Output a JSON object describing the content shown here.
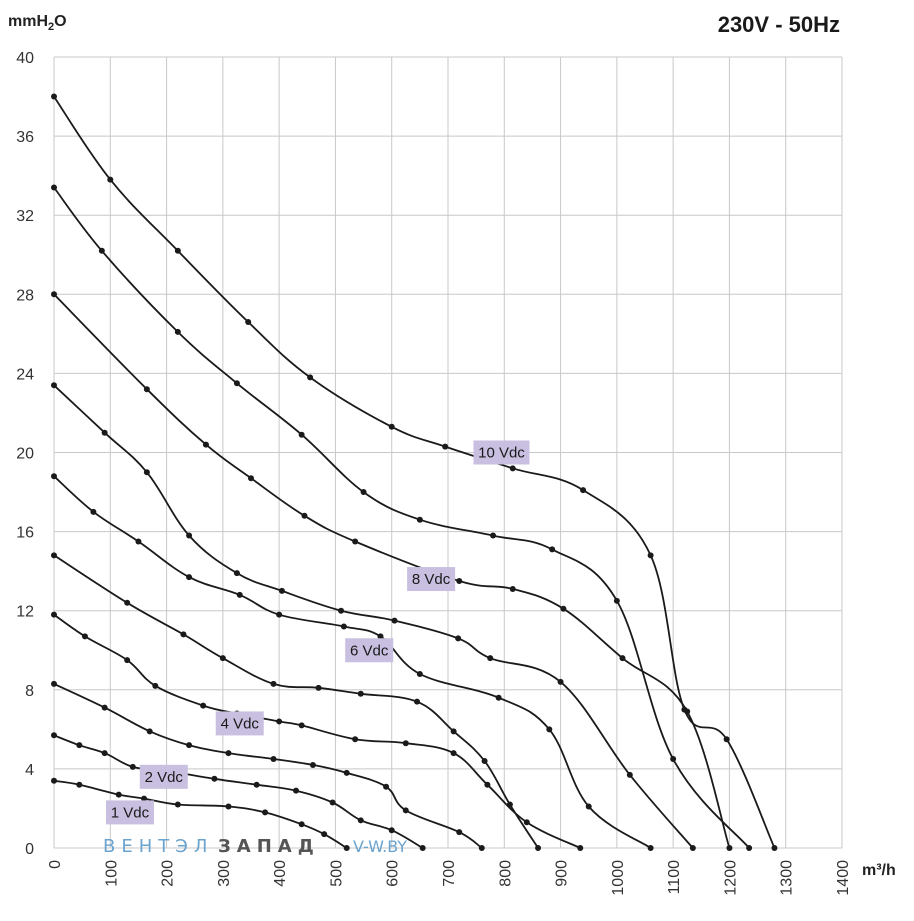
{
  "chart_data": {
    "type": "line",
    "title": "230V - 50Hz",
    "ylabel_main": "mmH",
    "ylabel_sub": "2",
    "ylabel_tail": "O",
    "xlabel": "m³/h",
    "xlim": [
      0,
      1400
    ],
    "ylim": [
      0,
      40
    ],
    "xticks": [
      0,
      100,
      200,
      300,
      400,
      500,
      600,
      700,
      800,
      900,
      1000,
      1100,
      1200,
      1300,
      1400
    ],
    "yticks": [
      0,
      4,
      8,
      12,
      16,
      20,
      24,
      28,
      32,
      36,
      40
    ],
    "grid": true,
    "colors": {
      "curve": "#1a1a1a",
      "grid": "#c8c8c8",
      "label_bg": "#c9bfe0"
    },
    "series": [
      {
        "name": "10 Vdc",
        "points": [
          [
            0,
            38
          ],
          [
            100,
            33.8
          ],
          [
            220,
            30.2
          ],
          [
            345,
            26.6
          ],
          [
            455,
            23.8
          ],
          [
            600,
            21.3
          ],
          [
            695,
            20.3
          ],
          [
            815,
            19.2
          ],
          [
            940,
            18.1
          ],
          [
            1060,
            14.8
          ],
          [
            1120,
            7
          ],
          [
            1195,
            5.5
          ],
          [
            1280,
            0
          ]
        ],
        "label_at": [
          795,
          20
        ]
      },
      {
        "name": "8 Vdc",
        "points": [
          [
            0,
            33.4
          ],
          [
            85,
            30.2
          ],
          [
            220,
            26.1
          ],
          [
            325,
            23.5
          ],
          [
            440,
            20.9
          ],
          [
            550,
            18
          ],
          [
            650,
            16.6
          ],
          [
            780,
            15.8
          ],
          [
            885,
            15.1
          ],
          [
            1000,
            12.5
          ],
          [
            1100,
            4.5
          ],
          [
            1235,
            0
          ]
        ],
        "label_at": [
          670,
          13.6
        ]
      },
      {
        "name": "6 Vdc",
        "points": [
          [
            0,
            28
          ],
          [
            165,
            23.2
          ],
          [
            270,
            20.4
          ],
          [
            350,
            18.7
          ],
          [
            445,
            16.8
          ],
          [
            535,
            15.5
          ],
          [
            720,
            13.5
          ],
          [
            815,
            13.1
          ],
          [
            905,
            12.1
          ],
          [
            1010,
            9.6
          ],
          [
            1125,
            6.9
          ],
          [
            1200,
            0
          ]
        ],
        "label_at": [
          560,
          10
        ]
      },
      {
        "name": "4 Vdc",
        "points": [
          [
            0,
            23.4
          ],
          [
            90,
            21
          ],
          [
            165,
            19
          ],
          [
            240,
            15.8
          ],
          [
            325,
            13.9
          ],
          [
            405,
            13
          ],
          [
            510,
            12
          ],
          [
            605,
            11.5
          ],
          [
            718,
            10.6
          ],
          [
            775,
            9.6
          ],
          [
            900,
            8.4
          ],
          [
            1023,
            3.7
          ],
          [
            1135,
            0
          ]
        ],
        "label_at": [
          330,
          6.3
        ]
      },
      {
        "name": "2 Vdc",
        "points": [
          [
            0,
            18.8
          ],
          [
            70,
            17
          ],
          [
            150,
            15.5
          ],
          [
            240,
            13.7
          ],
          [
            330,
            12.8
          ],
          [
            400,
            11.8
          ],
          [
            515,
            11.2
          ],
          [
            580,
            10.7
          ],
          [
            650,
            8.8
          ],
          [
            790,
            7.6
          ],
          [
            880,
            6
          ],
          [
            950,
            2.1
          ],
          [
            1060,
            0
          ]
        ],
        "label_at": [
          195,
          3.6
        ]
      },
      {
        "name": "1 Vdc",
        "points": [
          [
            0,
            14.8
          ],
          [
            130,
            12.4
          ],
          [
            230,
            10.8
          ],
          [
            300,
            9.6
          ],
          [
            390,
            8.3
          ],
          [
            470,
            8.1
          ],
          [
            545,
            7.8
          ],
          [
            645,
            7.4
          ],
          [
            710,
            5.9
          ],
          [
            765,
            4.4
          ],
          [
            810,
            2.2
          ],
          [
            860,
            0
          ]
        ],
        "label_at": [
          135,
          1.8
        ]
      },
      {
        "points": [
          [
            0,
            11.8
          ],
          [
            55,
            10.7
          ],
          [
            130,
            9.5
          ],
          [
            180,
            8.2
          ],
          [
            265,
            7.2
          ],
          [
            325,
            6.8
          ],
          [
            400,
            6.4
          ],
          [
            440,
            6.2
          ],
          [
            535,
            5.5
          ],
          [
            625,
            5.3
          ],
          [
            710,
            4.8
          ],
          [
            770,
            3.2
          ],
          [
            840,
            1.3
          ],
          [
            935,
            0
          ]
        ]
      },
      {
        "points": [
          [
            0,
            8.3
          ],
          [
            90,
            7.1
          ],
          [
            170,
            5.9
          ],
          [
            240,
            5.2
          ],
          [
            310,
            4.8
          ],
          [
            390,
            4.5
          ],
          [
            460,
            4.2
          ],
          [
            520,
            3.8
          ],
          [
            590,
            3.1
          ],
          [
            625,
            1.9
          ],
          [
            720,
            0.8
          ],
          [
            760,
            0
          ]
        ]
      },
      {
        "points": [
          [
            0,
            5.7
          ],
          [
            45,
            5.2
          ],
          [
            90,
            4.8
          ],
          [
            140,
            4.1
          ],
          [
            200,
            3.9
          ],
          [
            285,
            3.5
          ],
          [
            360,
            3.2
          ],
          [
            430,
            2.9
          ],
          [
            495,
            2.3
          ],
          [
            545,
            1.4
          ],
          [
            600,
            0.9
          ],
          [
            655,
            0
          ]
        ]
      },
      {
        "points": [
          [
            0,
            3.4
          ],
          [
            45,
            3.2
          ],
          [
            115,
            2.7
          ],
          [
            160,
            2.5
          ],
          [
            220,
            2.2
          ],
          [
            310,
            2.1
          ],
          [
            375,
            1.8
          ],
          [
            440,
            1.2
          ],
          [
            480,
            0.7
          ],
          [
            520,
            0
          ]
        ]
      }
    ]
  },
  "watermark": {
    "part1": "ВЕНТЭЛ",
    "part2": "ЗАПАД",
    "part3": "V-W.BY"
  }
}
